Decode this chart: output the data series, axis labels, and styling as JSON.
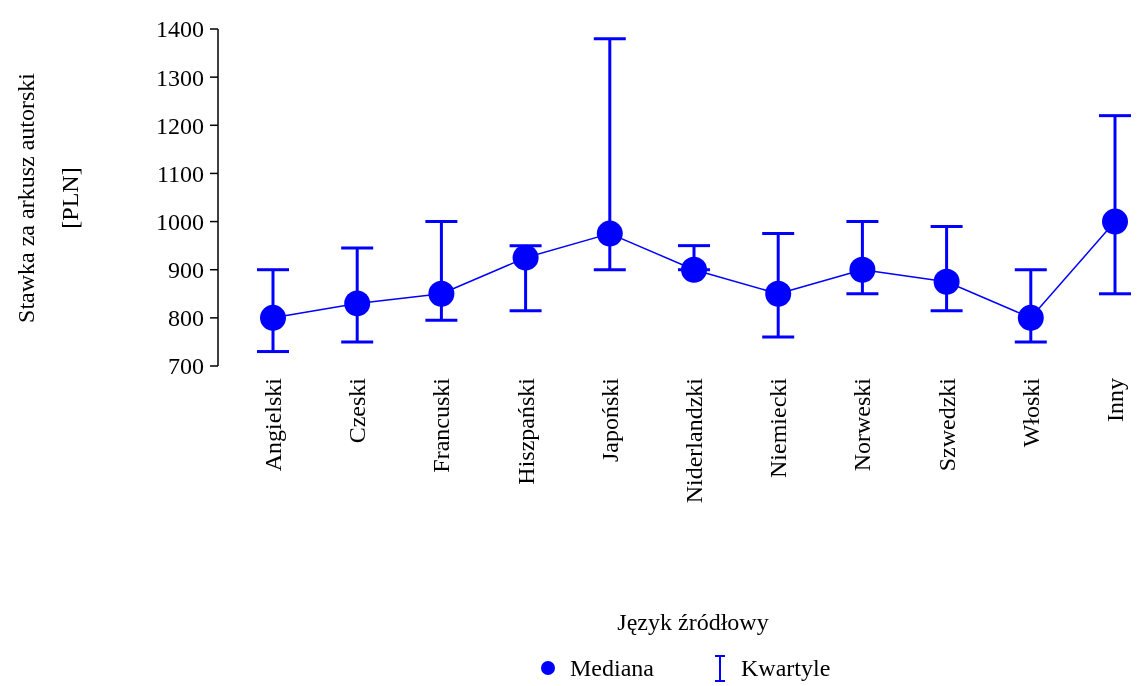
{
  "chart_data": {
    "type": "line",
    "xlabel": "Język źródłowy",
    "ylabel": "Stawka za arkusz autorski\n[PLN]",
    "categories": [
      "Angielski",
      "Czeski",
      "Francuski",
      "Hiszpański",
      "Japoński",
      "Niderlandzki",
      "Niemiecki",
      "Norweski",
      "Szwedzki",
      "Włoski",
      "Inny"
    ],
    "series": [
      {
        "name": "Mediana",
        "color": "#0000ff",
        "values": [
          800,
          830,
          850,
          925,
          975,
          900,
          850,
          900,
          875,
          800,
          1000
        ],
        "errors": [
          [
            730,
            900
          ],
          [
            750,
            945
          ],
          [
            795,
            1000
          ],
          [
            815,
            950
          ],
          [
            900,
            1380
          ],
          [
            900,
            950
          ],
          [
            760,
            975
          ],
          [
            850,
            1000
          ],
          [
            815,
            990
          ],
          [
            750,
            900
          ],
          [
            850,
            1220
          ]
        ]
      }
    ],
    "ylim": [
      700,
      1400
    ],
    "yticks": [
      700,
      800,
      900,
      1000,
      1100,
      1200,
      1300,
      1400
    ],
    "marker": "circle",
    "legend": "bottom",
    "grid": false,
    "annotations": [
      "Kwartyle"
    ]
  }
}
